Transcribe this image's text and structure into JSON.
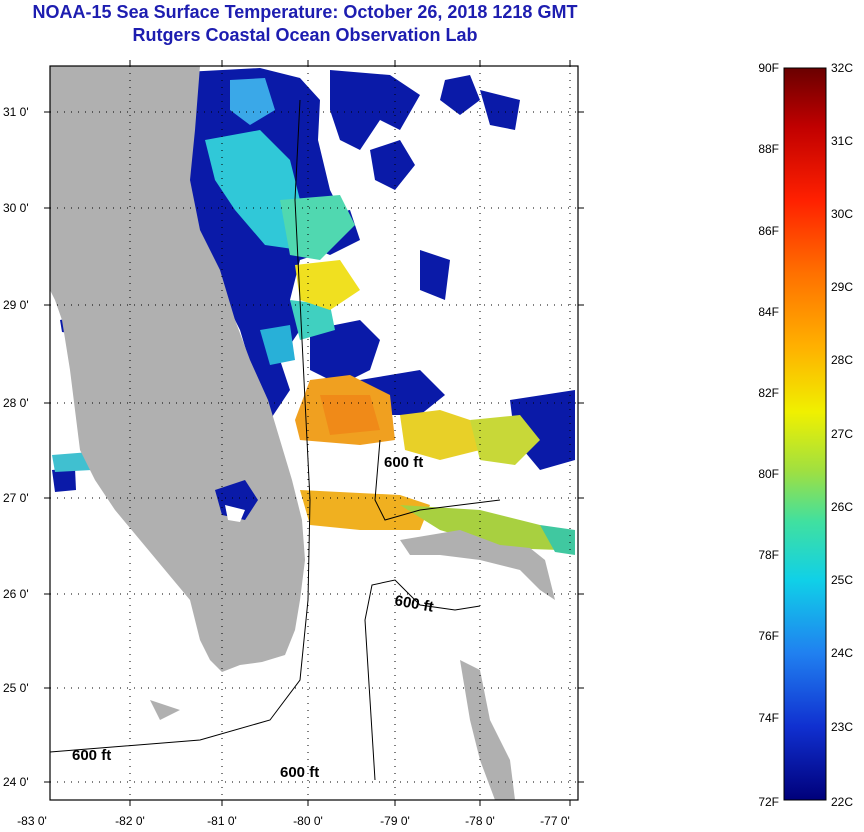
{
  "title": {
    "line1": "NOAA-15 Sea Surface Temperature:  October 26, 2018 1218 GMT",
    "line2": "Rutgers Coastal Ocean Observation Lab"
  },
  "map": {
    "lat_labels": [
      "31 0'",
      "30 0'",
      "29 0'",
      "28 0'",
      "27 0'",
      "26 0'",
      "25 0'",
      "24 0'"
    ],
    "lon_labels": [
      "-83 0'",
      "-82 0'",
      "-81 0'",
      "-80 0'",
      "-79 0'",
      "-78 0'",
      "-77 0'"
    ],
    "contour_label": "600 ft",
    "colors": {
      "land": "#b0b0b0",
      "cloud_blue": "#0a1aa8"
    }
  },
  "color_scale": {
    "fahrenheit_labels": [
      "90F",
      "88F",
      "86F",
      "84F",
      "82F",
      "80F",
      "78F",
      "76F",
      "74F",
      "72F"
    ],
    "celsius_labels": [
      "32C",
      "31C",
      "30C",
      "29C",
      "28C",
      "27C",
      "26C",
      "25C",
      "24C",
      "23C",
      "22C"
    ]
  }
}
